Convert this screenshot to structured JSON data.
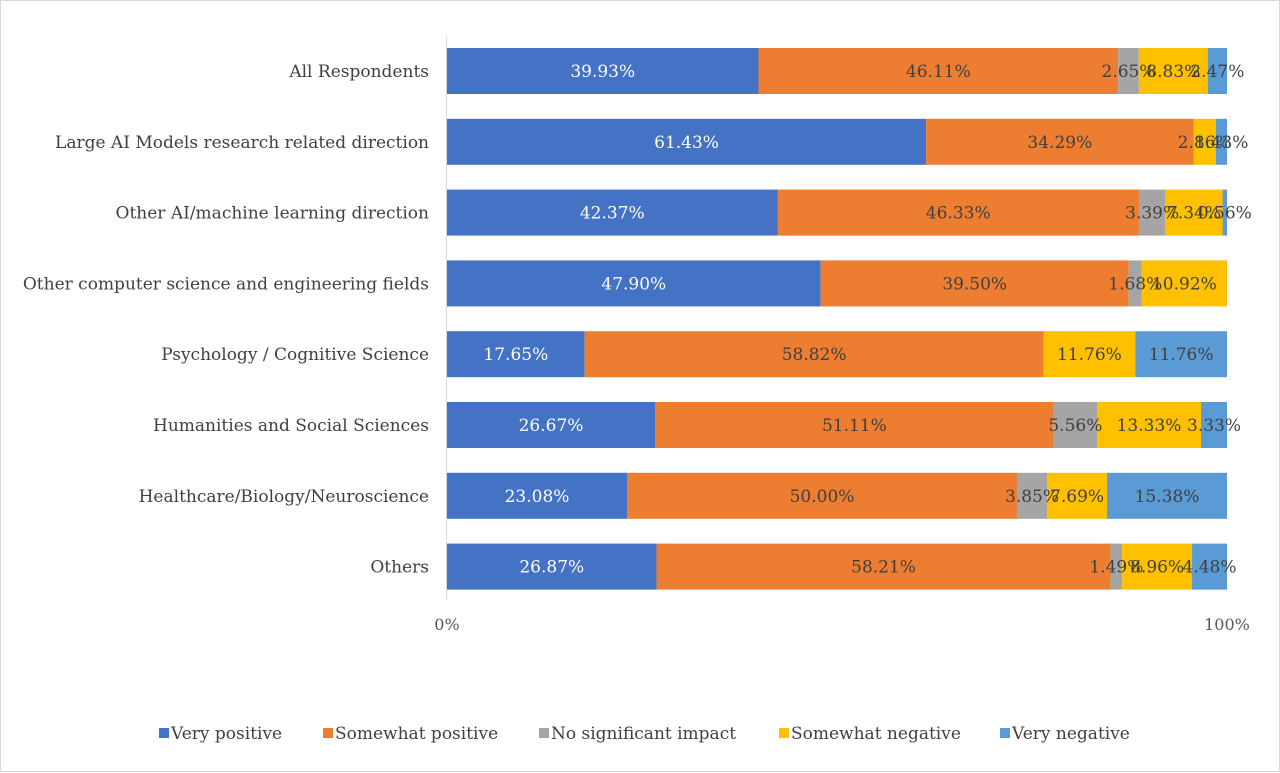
{
  "chart_data": {
    "type": "bar",
    "orientation": "horizontal",
    "stacked": "percent",
    "categories": [
      "All Respondents",
      "Large AI Models research related direction",
      "Other AI/machine learning direction",
      "Other computer science and engineering fields",
      "Psychology / Cognitive Science",
      "Humanities and Social Sciences",
      "Healthcare/Biology/Neuroscience",
      "Others"
    ],
    "series": [
      {
        "name": "Very positive",
        "color": "#4472c4",
        "label_color": "#ffffff",
        "values": [
          39.93,
          61.43,
          42.37,
          47.9,
          17.65,
          26.67,
          23.08,
          26.87
        ],
        "labels": [
          "39.93%",
          "61.43%",
          "42.37%",
          "47.90%",
          "17.65%",
          "26.67%",
          "23.08%",
          "26.87%"
        ]
      },
      {
        "name": "Somewhat positive",
        "color": "#ed7d31",
        "label_color": "#404040",
        "values": [
          46.11,
          34.29,
          46.33,
          39.5,
          58.82,
          51.11,
          50.0,
          58.21
        ],
        "labels": [
          "46.11%",
          "34.29%",
          "46.33%",
          "39.50%",
          "58.82%",
          "51.11%",
          "50.00%",
          "58.21%"
        ]
      },
      {
        "name": "No significant impact",
        "color": "#a5a5a5",
        "label_color": "#404040",
        "values": [
          2.65,
          0,
          3.39,
          1.68,
          0,
          5.56,
          3.85,
          1.49
        ],
        "labels": [
          "2.65%",
          "",
          "3.39%",
          "1.68%",
          "",
          "5.56%",
          "3.85%",
          "1.49%"
        ]
      },
      {
        "name": "Somewhat negative",
        "color": "#ffc000",
        "label_color": "#404040",
        "values": [
          8.83,
          2.86,
          7.34,
          10.92,
          11.76,
          13.33,
          7.69,
          8.96
        ],
        "labels": [
          "8.83%",
          "2.86%",
          "7.34%",
          "10.92%",
          "11.76%",
          "13.33%",
          "7.69%",
          "8.96%"
        ]
      },
      {
        "name": "Very negative",
        "color": "#5b9bd5",
        "label_color": "#404040",
        "values": [
          2.47,
          1.43,
          0.56,
          0,
          11.76,
          3.33,
          15.38,
          4.48
        ],
        "labels": [
          "2.47%",
          "1.43%",
          "0.56%",
          "",
          "11.76%",
          "3.33%",
          "15.38%",
          "4.48%"
        ]
      }
    ],
    "xlim": [
      0,
      100
    ],
    "x_ticks": [
      "0%",
      "100%"
    ],
    "grid": false,
    "legend_position": "bottom",
    "title": "",
    "xlabel": "",
    "ylabel": ""
  }
}
